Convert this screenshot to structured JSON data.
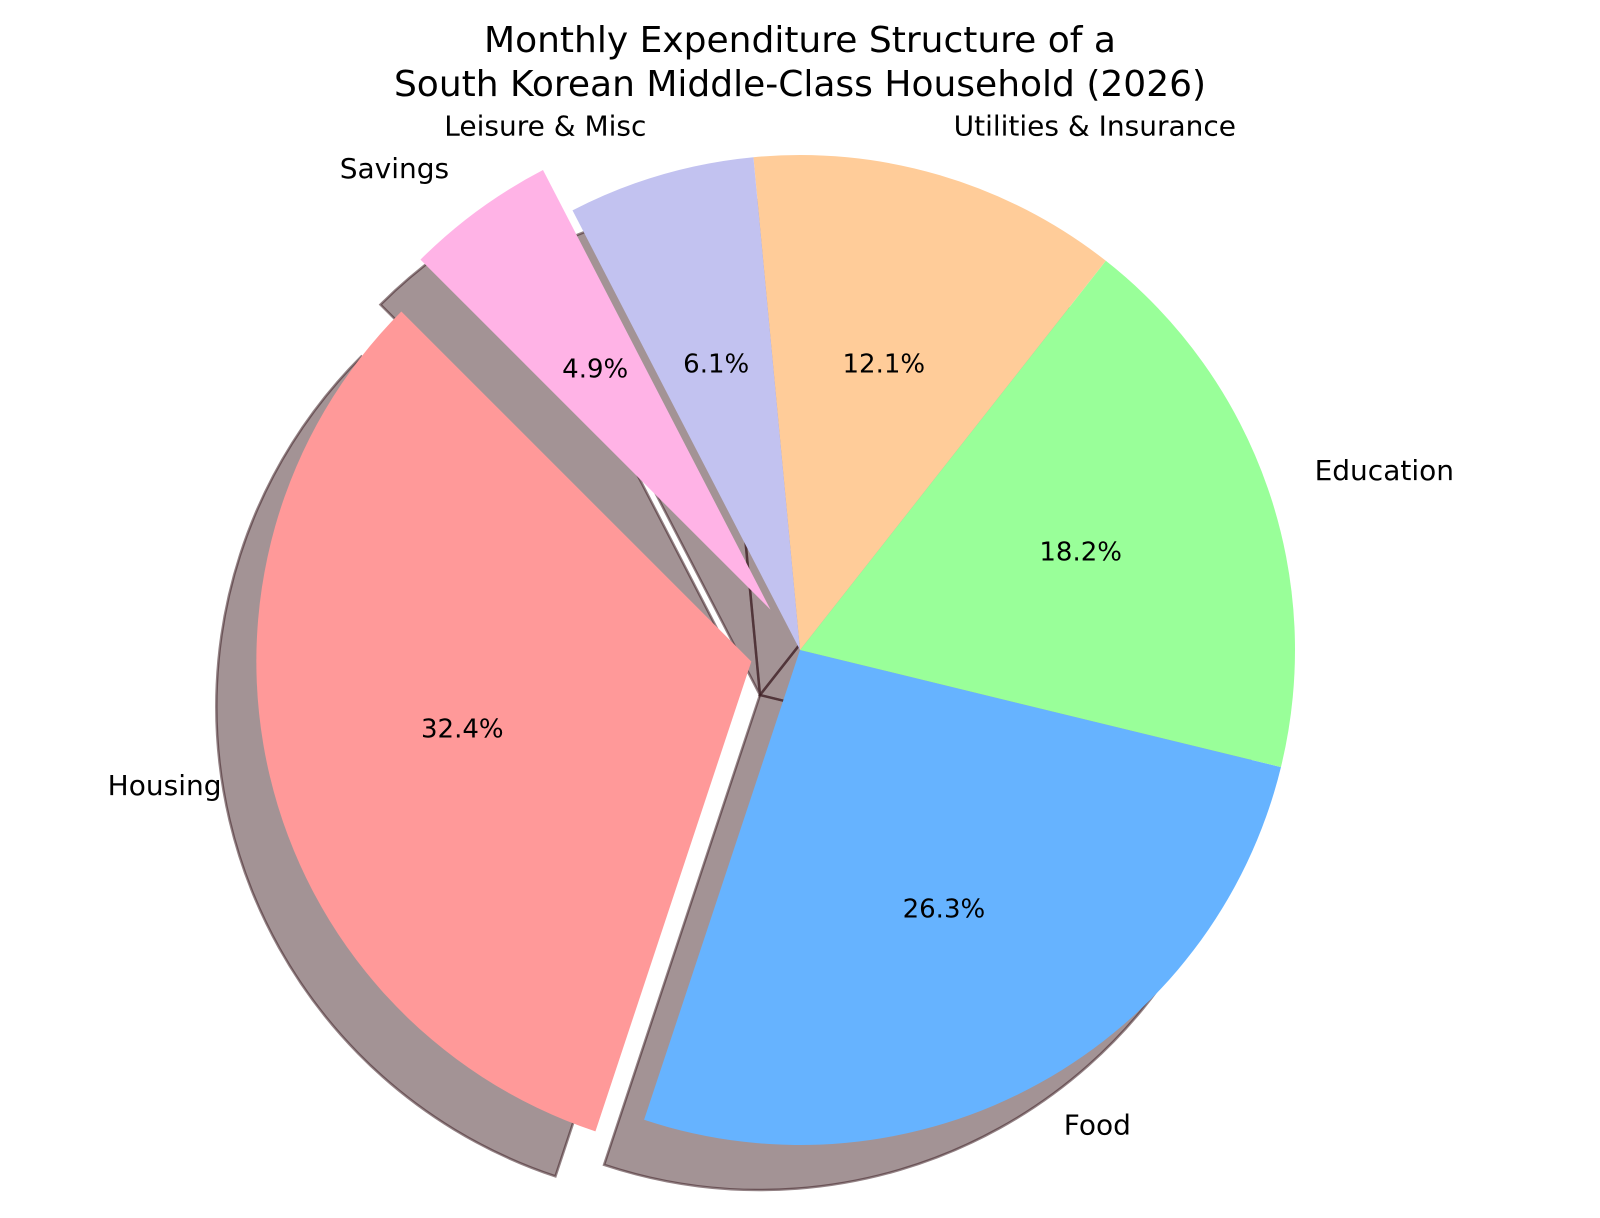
{
  "chart_data": {
    "type": "pie",
    "title_lines": [
      "Monthly Expenditure Structure of a",
      "South Korean Middle-Class Household (2026)"
    ],
    "labels": [
      "Housing",
      "Food",
      "Education",
      "Utilities & Insurance",
      "Leisure & Misc",
      "Savings"
    ],
    "values": [
      32.4,
      26.3,
      18.2,
      12.1,
      6.1,
      4.9
    ],
    "percent_labels": [
      "32.4%",
      "26.3%",
      "18.2%",
      "12.1%",
      "6.1%",
      "4.9%"
    ],
    "colors": [
      "#ff9999",
      "#66b3ff",
      "#99ff99",
      "#ffcc99",
      "#c2c2f0",
      "#ffb3e6"
    ],
    "exploded": [
      true,
      false,
      false,
      false,
      false,
      true
    ],
    "start_angle_deg": 135,
    "direction": "counterclockwise",
    "shadow": true,
    "legend": "none"
  }
}
